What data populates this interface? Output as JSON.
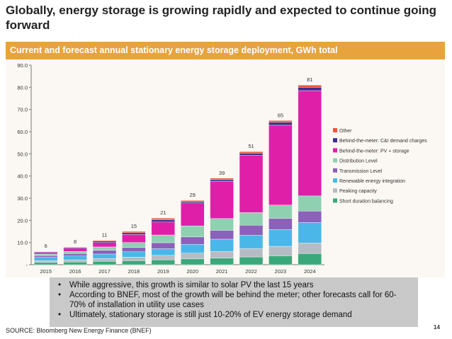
{
  "slide": {
    "title": "Globally, energy storage is growing rapidly and expected to continue going forward",
    "source": "SOURCE: Bloomberg New Energy Finance (BNEF)",
    "page_number": "14",
    "notes": [
      "While aggressive, this growth is similar to solar PV the last 15 years",
      "According to BNEF, most of the growth will be behind the meter; other forecasts call for 60-70% of installation in utility use cases",
      "Ultimately, stationary storage is still just 10-20% of EV energy storage demand"
    ]
  },
  "chart_data": {
    "type": "bar",
    "stacked": true,
    "title": "Current and forecast annual stationary energy storage deployment, GWh total",
    "xlabel": "",
    "ylabel": "",
    "categories": [
      "2015",
      "2016",
      "2017",
      "2018",
      "2019",
      "2020",
      "2021",
      "2022",
      "2023",
      "2024"
    ],
    "totals": [
      "6",
      "8",
      "11",
      "15",
      "21",
      "29",
      "39",
      "51",
      "65",
      "81"
    ],
    "ylim": [
      0,
      90
    ],
    "yticks": [
      0,
      10,
      20,
      30,
      40,
      50,
      60,
      70,
      80,
      90
    ],
    "ytick_labels": [
      "-",
      "10.0",
      "20.0",
      "30.0",
      "40.0",
      "50.0",
      "60.0",
      "70.0",
      "80.0",
      "90.0"
    ],
    "grid": false,
    "legend_position": "right",
    "series": [
      {
        "name": "Short duration balancing",
        "color": "#3aa87a",
        "values": [
          1.0,
          1.2,
          1.5,
          1.8,
          2.2,
          2.6,
          3.0,
          3.5,
          4.0,
          5.0
        ]
      },
      {
        "name": "Peaking capacity",
        "color": "#b5bcc4",
        "values": [
          0.8,
          1.0,
          1.3,
          1.6,
          2.0,
          2.6,
          3.0,
          3.8,
          4.3,
          4.8
        ]
      },
      {
        "name": "Renewable energy integration",
        "color": "#4ab7e8",
        "values": [
          1.5,
          1.7,
          2.0,
          2.4,
          3.0,
          4.0,
          5.5,
          6.0,
          7.6,
          9.2
        ]
      },
      {
        "name": "Transmission Level",
        "color": "#8b61b9",
        "values": [
          0.8,
          1.1,
          1.7,
          2.0,
          2.7,
          3.3,
          4.0,
          4.5,
          5.0,
          5.2
        ]
      },
      {
        "name": "Distribution Level",
        "color": "#8fd0b1",
        "values": [
          0.7,
          1.0,
          1.5,
          2.2,
          3.5,
          5.0,
          5.3,
          5.7,
          6.0,
          6.8
        ]
      },
      {
        "name": "Behind-the-meter: PV + storage",
        "color": "#e01fa8",
        "values": [
          0.7,
          1.4,
          2.0,
          3.6,
          5.8,
          10.4,
          16.7,
          25.8,
          36.0,
          47.5
        ]
      },
      {
        "name": "Behind-the-meter: C&I demand charges",
        "color": "#3b2f8f",
        "values": [
          0.3,
          0.4,
          0.6,
          0.8,
          1.0,
          0.6,
          0.8,
          1.0,
          1.3,
          1.5
        ]
      },
      {
        "name": "Other",
        "color": "#e8593a",
        "values": [
          0.2,
          0.2,
          0.4,
          0.6,
          0.8,
          0.5,
          0.7,
          0.7,
          0.8,
          1.0
        ]
      }
    ]
  }
}
